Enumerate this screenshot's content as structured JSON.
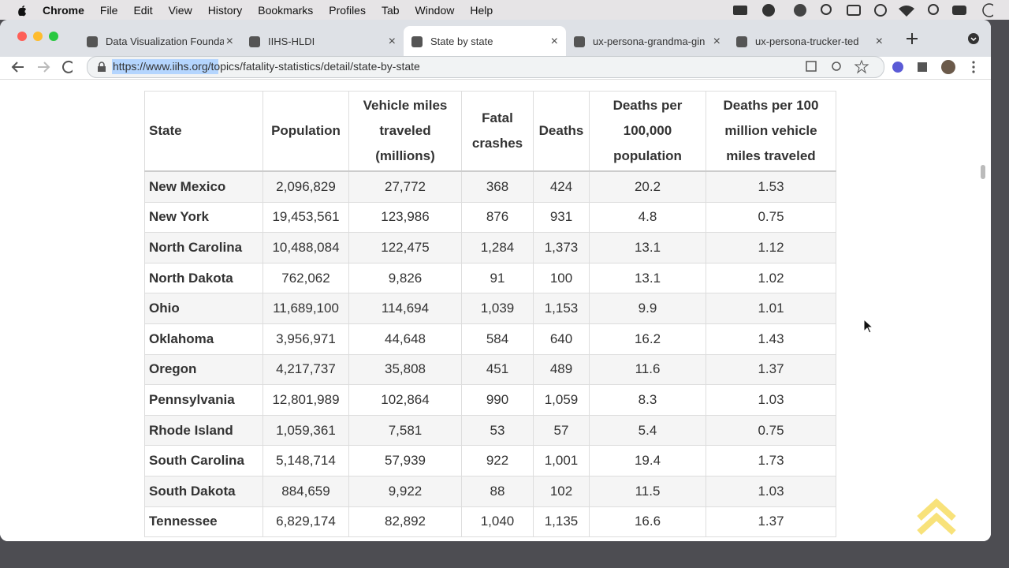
{
  "menu_bar": {
    "app": "Chrome",
    "items": [
      "File",
      "Edit",
      "View",
      "History",
      "Bookmarks",
      "Profiles",
      "Tab",
      "Window",
      "Help"
    ]
  },
  "tabs": [
    "Data Visualization Founda",
    "IIHS-HLDI",
    "State by state",
    "ux-persona-grandma-gin",
    "ux-persona-trucker-ted"
  ],
  "address_bar": {
    "url": "https://www.iihs.org/topics/fatality-statistics/detail/state-by-state"
  },
  "table": {
    "headers": [
      "State",
      "Population",
      "Vehicle miles traveled (millions)",
      "Fatal crashes",
      "Deaths",
      "Deaths per 100,000 population",
      "Deaths per 100 million vehicle miles traveled"
    ],
    "rows": [
      [
        "New Mexico",
        "2,096,829",
        "27,772",
        "368",
        "424",
        "20.2",
        "1.53"
      ],
      [
        "New York",
        "19,453,561",
        "123,986",
        "876",
        "931",
        "4.8",
        "0.75"
      ],
      [
        "North Carolina",
        "10,488,084",
        "122,475",
        "1,284",
        "1,373",
        "13.1",
        "1.12"
      ],
      [
        "North Dakota",
        "762,062",
        "9,826",
        "91",
        "100",
        "13.1",
        "1.02"
      ],
      [
        "Ohio",
        "11,689,100",
        "114,694",
        "1,039",
        "1,153",
        "9.9",
        "1.01"
      ],
      [
        "Oklahoma",
        "3,956,971",
        "44,648",
        "584",
        "640",
        "16.2",
        "1.43"
      ],
      [
        "Oregon",
        "4,217,737",
        "35,808",
        "451",
        "489",
        "11.6",
        "1.37"
      ],
      [
        "Pennsylvania",
        "12,801,989",
        "102,864",
        "990",
        "1,059",
        "8.3",
        "1.03"
      ],
      [
        "Rhode Island",
        "1,059,361",
        "7,581",
        "53",
        "57",
        "5.4",
        "0.75"
      ],
      [
        "South Carolina",
        "5,148,714",
        "57,939",
        "922",
        "1,001",
        "19.4",
        "1.73"
      ],
      [
        "South Dakota",
        "884,659",
        "9,922",
        "88",
        "102",
        "11.5",
        "1.03"
      ],
      [
        "Tennessee",
        "6,829,174",
        "82,892",
        "1,040",
        "1,135",
        "16.6",
        "1.37"
      ]
    ]
  }
}
